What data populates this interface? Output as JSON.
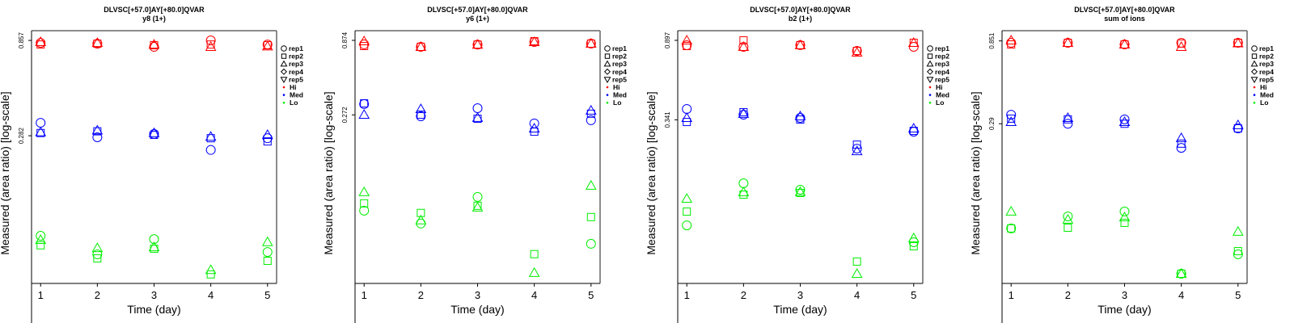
{
  "chart_data": [
    {
      "type": "scatter",
      "title": "DLVSC[+57.0]AY[+80.0]QVAR",
      "subtitle": "y8 (1+)",
      "xlabel": "Time (day)",
      "ylabel": "Measured (area ratio) [log-scale]",
      "y_scale": "log",
      "xlim": [
        0.84,
        5.16
      ],
      "ylim": [
        0.0504,
        0.96
      ],
      "x_ticks": [
        "1",
        "2",
        "3",
        "4",
        "5"
      ],
      "y_ticks": [
        {
          "value": 0.857,
          "label": "0.857"
        },
        {
          "value": 0.282,
          "label": "0.282"
        }
      ],
      "x": [
        1,
        2,
        3,
        4,
        5
      ],
      "series": [
        {
          "name": "Hi",
          "color": "#FF0000",
          "reps": {
            "rep1": [
              0.833,
              0.825,
              0.795,
              0.857,
              0.817
            ],
            "rep2": [
              0.817,
              0.825,
              0.81,
              0.817,
              0.81
            ],
            "rep3": [
              0.841,
              0.833,
              0.817,
              0.795,
              0.8
            ]
          }
        },
        {
          "name": "Med",
          "color": "#0000FF",
          "reps": {
            "rep1": [
              0.328,
              0.277,
              0.288,
              0.239,
              0.274
            ],
            "rep2": [
              0.291,
              0.297,
              0.285,
              0.274,
              0.264
            ],
            "rep3": [
              0.294,
              0.3,
              0.291,
              0.279,
              0.285
            ]
          }
        },
        {
          "name": "Lo",
          "color": "#00EE00",
          "reps": {
            "rep1": [
              0.0878,
              0.0707,
              0.0845,
              null,
              0.0727
            ],
            "rep2": [
              0.0786,
              0.0675,
              0.0755,
              0.056,
              0.0656
            ],
            "rep3": [
              0.0838,
              0.0762,
              0.0769,
              0.059,
              0.0817
            ]
          }
        }
      ]
    },
    {
      "type": "scatter",
      "title": "DLVSC[+57.0]AY[+80.0]QVAR",
      "subtitle": "y6 (1+)",
      "xlabel": "Time (day)",
      "ylabel": "Measured (area ratio) [log-scale]",
      "y_scale": "log",
      "xlim": [
        0.84,
        5.16
      ],
      "ylim": [
        0.0194,
        1.017
      ],
      "x_ticks": [
        "1",
        "2",
        "3",
        "4",
        "5"
      ],
      "y_ticks": [
        {
          "value": 0.874,
          "label": "0.874"
        },
        {
          "value": 0.272,
          "label": "0.272"
        }
      ],
      "x": [
        1,
        2,
        3,
        4,
        5
      ],
      "series": [
        {
          "name": "Hi",
          "color": "#FF0000",
          "reps": {
            "rep1": [
              0.821,
              0.79,
              0.818,
              0.852,
              0.831
            ],
            "rep2": [
              0.8,
              0.79,
              0.818,
              0.863,
              0.831
            ],
            "rep3": [
              0.863,
              0.79,
              0.818,
              0.852,
              0.831
            ]
          }
        },
        {
          "name": "Med",
          "color": "#0000FF",
          "reps": {
            "rep1": [
              0.322,
              0.266,
              0.302,
              0.238,
              0.25
            ],
            "rep2": [
              0.326,
              0.273,
              0.256,
              0.209,
              0.277
            ],
            "rep3": [
              0.273,
              0.298,
              0.26,
              0.22,
              0.291
            ]
          }
        },
        {
          "name": "Lo",
          "color": "#00EE00",
          "reps": {
            "rep1": [
              0.0607,
              0.0496,
              0.0752,
              null,
              0.0361
            ],
            "rep2": [
              0.068,
              0.0585,
              0.0655,
              0.0307,
              0.0549
            ],
            "rep3": [
              0.0811,
              0.0522,
              0.0638,
              0.0229,
              0.0898
            ]
          }
        }
      ]
    },
    {
      "type": "scatter",
      "title": "DLVSC[+57.0]AY[+80.0]QVAR",
      "subtitle": "b2 (1+)",
      "xlabel": "Time (day)",
      "ylabel": "Measured (area ratio) [log-scale]",
      "y_scale": "log",
      "xlim": [
        0.84,
        5.16
      ],
      "ylim": [
        0.0465,
        1.009
      ],
      "x_ticks": [
        "1",
        "2",
        "3",
        "4",
        "5"
      ],
      "y_ticks": [
        {
          "value": 0.897,
          "label": "0.897"
        },
        {
          "value": 0.341,
          "label": "0.341"
        }
      ],
      "x": [
        1,
        2,
        3,
        4,
        5
      ],
      "series": [
        {
          "name": "Hi",
          "color": "#FF0000",
          "reps": {
            "rep1": [
              0.845,
              0.829,
              0.846,
              0.789,
              0.829
            ],
            "rep2": [
              0.837,
              0.897,
              0.846,
              0.789,
              0.871
            ],
            "rep3": [
              0.897,
              0.829,
              0.846,
              0.774,
              0.871
            ]
          }
        },
        {
          "name": "Med",
          "color": "#0000FF",
          "reps": {
            "rep1": [
              0.389,
              0.363,
              0.349,
              0.24,
              0.295
            ],
            "rep2": [
              0.332,
              0.374,
              0.342,
              0.252,
              0.298
            ],
            "rep3": [
              0.349,
              0.367,
              0.356,
              0.233,
              0.307
            ]
          }
        },
        {
          "name": "Lo",
          "color": "#00EE00",
          "reps": {
            "rep1": [
              0.0943,
              0.1574,
              0.1455,
              null,
              0.0768
            ],
            "rep2": [
              0.1115,
              0.1371,
              0.1399,
              0.0607,
              0.0731
            ],
            "rep3": [
              0.1306,
              0.1412,
              0.1418,
              0.0523,
              0.0807
            ]
          }
        }
      ]
    },
    {
      "type": "scatter",
      "title": "DLVSC[+57.0]AY[+80.0]QVAR",
      "subtitle": "sum of ions",
      "xlabel": "Time (day)",
      "ylabel": "Measured (area ratio) [log-scale]",
      "y_scale": "log",
      "xlim": [
        0.84,
        5.16
      ],
      "ylim": [
        0.0364,
        0.972
      ],
      "x_ticks": [
        "1",
        "2",
        "3",
        "4",
        "5"
      ],
      "y_ticks": [
        {
          "value": 0.851,
          "label": "0.851"
        },
        {
          "value": 0.29,
          "label": "0.29"
        }
      ],
      "x": [
        1,
        2,
        3,
        4,
        5
      ],
      "series": [
        {
          "name": "Hi",
          "color": "#FF0000",
          "reps": {
            "rep1": [
              0.83,
              0.83,
              0.813,
              0.83,
              0.83
            ],
            "rep2": [
              0.813,
              0.83,
              0.813,
              0.822,
              0.83
            ],
            "rep3": [
              0.857,
              0.83,
              0.813,
              0.788,
              0.826
            ]
          }
        },
        {
          "name": "Med",
          "color": "#0000FF",
          "reps": {
            "rep1": [
              0.326,
              0.29,
              0.307,
              0.212,
              0.273
            ],
            "rep2": [
              0.31,
              0.307,
              0.29,
              0.224,
              0.273
            ],
            "rep3": [
              0.297,
              0.313,
              0.297,
              0.241,
              0.285
            ]
          }
        },
        {
          "name": "Lo",
          "color": "#00EE00",
          "reps": {
            "rep1": [
              0.0744,
              0.087,
              0.0927,
              0.0413,
              0.0532
            ],
            "rep2": [
              0.0744,
              0.0751,
              0.08,
              0.0413,
              0.0554
            ],
            "rep3": [
              0.0927,
              0.0835,
              0.0861,
              0.0413,
              0.0713
            ]
          }
        }
      ]
    }
  ],
  "legend": {
    "placement": "right",
    "shapes": [
      {
        "label": "rep1",
        "icon": "circle-icon"
      },
      {
        "label": "rep2",
        "icon": "square-icon"
      },
      {
        "label": "rep3",
        "icon": "triangle-icon"
      },
      {
        "label": "rep4",
        "icon": "diamond-icon"
      },
      {
        "label": "rep5",
        "icon": "down-triangle-icon"
      }
    ],
    "groups": [
      {
        "label": "Hi",
        "color": "#FF0000"
      },
      {
        "label": "Med",
        "color": "#0000FF"
      },
      {
        "label": "Lo",
        "color": "#00EE00"
      }
    ]
  }
}
